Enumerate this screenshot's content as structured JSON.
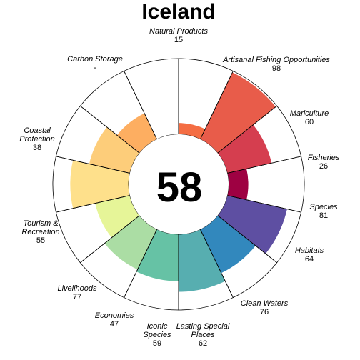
{
  "chart_data": {
    "type": "flower",
    "title": "Iceland",
    "center_score": "58",
    "max_value": 100,
    "segments": [
      {
        "label_lines": [
          "Natural Products"
        ],
        "value_text": "15",
        "value": 15,
        "color": "#f46d43"
      },
      {
        "label_lines": [
          "Artisanal Fishing Opportunities"
        ],
        "value_text": "98",
        "value": 98,
        "color": "#e85c4a"
      },
      {
        "label_lines": [
          "Mariculture"
        ],
        "value_text": "60",
        "value": 60,
        "color": "#d53e4f"
      },
      {
        "label_lines": [
          "Fisheries"
        ],
        "value_text": "26",
        "value": 26,
        "color": "#9e0142"
      },
      {
        "label_lines": [
          "Species"
        ],
        "value_text": "81",
        "value": 81,
        "color": "#5e4fa2"
      },
      {
        "label_lines": [
          "Habitats"
        ],
        "value_text": "64",
        "value": 64,
        "color": "#3288bd"
      },
      {
        "label_lines": [
          "Clean Waters"
        ],
        "value_text": "76",
        "value": 76,
        "color": "#57aeb0"
      },
      {
        "label_lines": [
          "Lasting Special",
          "Places"
        ],
        "value_text": "62",
        "value": 62,
        "color": "#66c2a5"
      },
      {
        "label_lines": [
          "Iconic",
          "Species"
        ],
        "value_text": "59",
        "value": 59,
        "color": "#abdda4"
      },
      {
        "label_lines": [
          "Economies"
        ],
        "value_text": "47",
        "value": 47,
        "color": "#e6f598"
      },
      {
        "label_lines": [
          "Livelihoods"
        ],
        "value_text": "77",
        "value": 77,
        "color": "#fee08b"
      },
      {
        "label_lines": [
          "Tourism &",
          "Recreation"
        ],
        "value_text": "55",
        "value": 55,
        "color": "#fdcd7a"
      },
      {
        "label_lines": [
          "Coastal",
          "Protection"
        ],
        "value_text": "38",
        "value": 38,
        "color": "#fdae61"
      },
      {
        "label_lines": [
          "Carbon Storage"
        ],
        "value_text": "-",
        "value": null,
        "color": "#ffffff"
      }
    ]
  }
}
